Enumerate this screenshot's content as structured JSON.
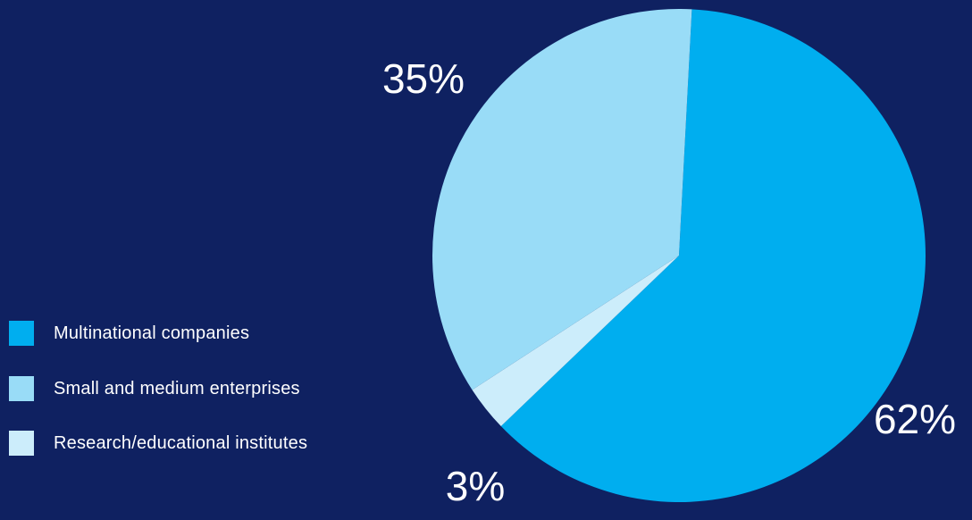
{
  "chart_data": {
    "type": "pie",
    "title": "",
    "categories": [
      "Multinational companies",
      "Small and medium enterprises",
      "Research/educational institutes"
    ],
    "values": [
      62,
      35,
      3
    ],
    "labels": [
      "62%",
      "35%",
      "3%"
    ],
    "colors": [
      "#00aeef",
      "#99dcf7",
      "#ccedfb"
    ],
    "legend_position": "left",
    "start_angle_deg": 3
  }
}
